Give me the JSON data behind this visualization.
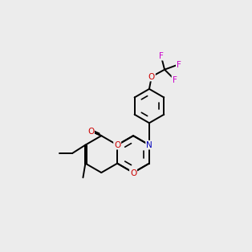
{
  "bg_color": "#ececec",
  "bond_color": "#000000",
  "O_color": "#cc0000",
  "N_color": "#0000bb",
  "F_color": "#cc00cc",
  "lw": 1.4,
  "dbo": 0.055,
  "fs": 7.5
}
